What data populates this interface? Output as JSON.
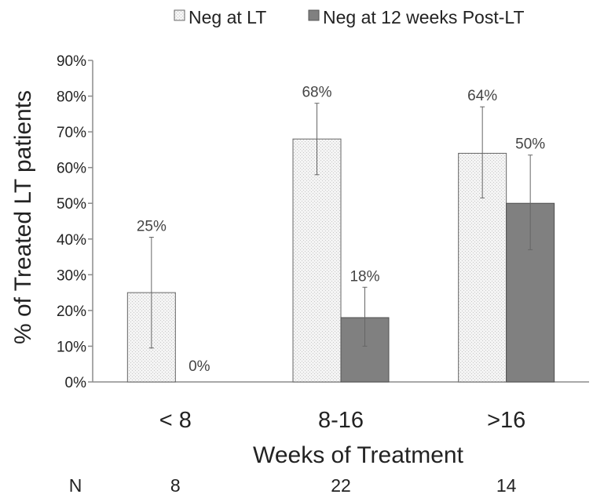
{
  "chart_data": {
    "type": "bar",
    "title": "",
    "xlabel": "Weeks of Treatment",
    "ylabel": "% of Treated LT patients",
    "categories": [
      "< 8",
      "8-16",
      ">16"
    ],
    "ylim": [
      0,
      90
    ],
    "y_ticks": [
      0,
      10,
      20,
      30,
      40,
      50,
      60,
      70,
      80,
      90
    ],
    "y_tick_suffix": "%",
    "grid": false,
    "legend_position": "top",
    "series": [
      {
        "name": "Neg at LT",
        "values": [
          25,
          68,
          64
        ],
        "labels": [
          "25%",
          "68%",
          "64%"
        ],
        "error_low": [
          9.5,
          58,
          51.5
        ],
        "error_high": [
          40.5,
          78,
          77
        ],
        "color": "#f2f2f2",
        "pattern": "dotted"
      },
      {
        "name": "Neg at 12 weeks Post-LT",
        "values": [
          0,
          18,
          50
        ],
        "labels": [
          "0%",
          "18%",
          "50%"
        ],
        "error_low": [
          null,
          10,
          37
        ],
        "error_high": [
          null,
          26.5,
          63.5
        ],
        "color": "#808080",
        "pattern": "solid"
      }
    ],
    "n_row": {
      "label": "N",
      "values": [
        "8",
        "22",
        "14"
      ]
    }
  }
}
